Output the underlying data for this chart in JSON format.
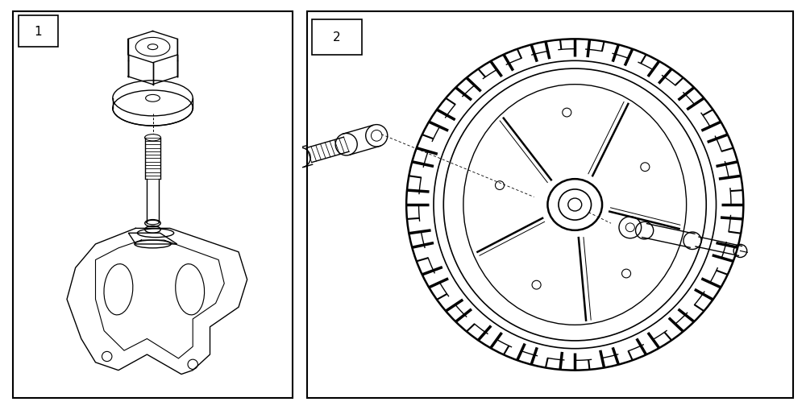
{
  "bg_color": "#ffffff",
  "line_color": "#000000",
  "figsize": [
    10.0,
    5.1
  ],
  "dpi": 100,
  "panel1_label": "1",
  "panel2_label": "2",
  "lw": 1.0,
  "lw_thick": 1.8,
  "lw_thin": 0.7
}
